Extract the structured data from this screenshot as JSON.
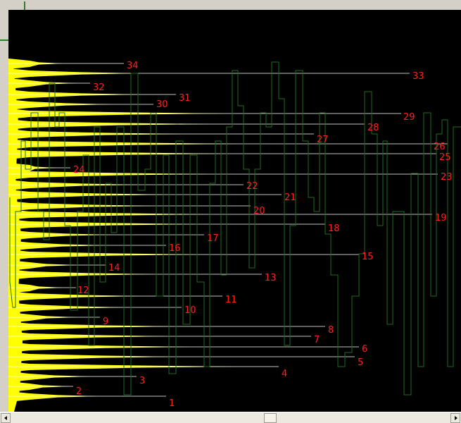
{
  "colors": {
    "background": "#000000",
    "fill": "#ffff00",
    "guide_line": "#ffffff",
    "trace": "#1f6b1f",
    "label": "#ff2020",
    "chrome": "#d4d0c8"
  },
  "icons": {
    "scroll_left": "arrow-left-icon",
    "scroll_right": "arrow-right-icon"
  },
  "peaks": [
    {
      "label": "1"
    },
    {
      "label": "2"
    },
    {
      "label": "3"
    },
    {
      "label": "4"
    },
    {
      "label": "5"
    },
    {
      "label": "6"
    },
    {
      "label": "7"
    },
    {
      "label": "8"
    },
    {
      "label": "9"
    },
    {
      "label": "10"
    },
    {
      "label": "11"
    },
    {
      "label": "12"
    },
    {
      "label": "13"
    },
    {
      "label": "14"
    },
    {
      "label": "15"
    },
    {
      "label": "16"
    },
    {
      "label": "17"
    },
    {
      "label": "18"
    },
    {
      "label": "19"
    },
    {
      "label": "20"
    },
    {
      "label": "21"
    },
    {
      "label": "22"
    },
    {
      "label": "23"
    },
    {
      "label": "24"
    },
    {
      "label": "25"
    },
    {
      "label": "26"
    },
    {
      "label": "27"
    },
    {
      "label": "28"
    },
    {
      "label": "29"
    },
    {
      "label": "30"
    },
    {
      "label": "31"
    },
    {
      "label": "32"
    },
    {
      "label": "33"
    },
    {
      "label": "34"
    }
  ]
}
